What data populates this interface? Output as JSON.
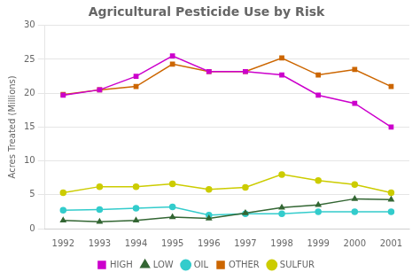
{
  "chart_data": {
    "type": "line",
    "title": "Agricultural Pesticide Use by Risk",
    "ylabel": "Acres Treated (Millions)",
    "x": [
      1992,
      1993,
      1994,
      1995,
      1996,
      1997,
      1998,
      1999,
      2000,
      2001
    ],
    "series": [
      {
        "name": "HIGH",
        "color": "#cc00cc",
        "marker": "square",
        "values": [
          19.7,
          20.5,
          22.5,
          25.5,
          23.2,
          23.2,
          22.7,
          19.7,
          18.5,
          15.0
        ]
      },
      {
        "name": "LOW",
        "color": "#336633",
        "marker": "triangle",
        "values": [
          1.2,
          1.0,
          1.2,
          1.7,
          1.5,
          2.3,
          3.1,
          3.5,
          4.4,
          4.3
        ]
      },
      {
        "name": "OIL",
        "color": "#33cccc",
        "marker": "circle",
        "values": [
          2.7,
          2.8,
          3.0,
          3.2,
          2.0,
          2.2,
          2.2,
          2.5,
          2.5,
          2.5
        ]
      },
      {
        "name": "OTHER",
        "color": "#cc6600",
        "marker": "square",
        "values": [
          19.8,
          20.5,
          21.0,
          24.3,
          23.2,
          23.2,
          25.2,
          22.7,
          23.5,
          21.0
        ]
      },
      {
        "name": "SULFUR",
        "color": "#cccc00",
        "marker": "circle",
        "values": [
          5.3,
          6.2,
          6.2,
          6.6,
          5.8,
          6.1,
          8.0,
          7.1,
          6.5,
          5.3
        ]
      }
    ],
    "xlim": [
      1991.5,
      2001.5
    ],
    "xticks": [
      1992,
      1993,
      1994,
      1995,
      1996,
      1997,
      1998,
      1999,
      2000,
      2001
    ],
    "ylim": [
      0,
      30
    ],
    "yticks": [
      0,
      5,
      10,
      15,
      20,
      25,
      30
    ],
    "grid": "y",
    "legend": "bottom"
  }
}
